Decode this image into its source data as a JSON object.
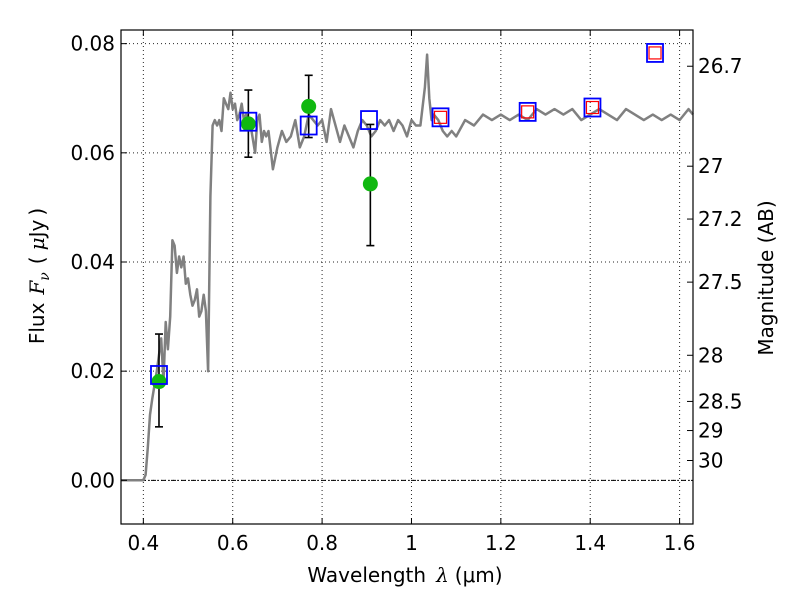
{
  "chart_data": {
    "type": "scatter",
    "title": "",
    "xlabel_text": "Wavelength",
    "xlabel_symbol": "λ",
    "xlabel_unit": "(μm)",
    "ylabel_text": "Flux",
    "ylabel_symbol": "F",
    "ylabel_subscript": "ν",
    "ylabel_unit_open": "(",
    "ylabel_unit_mu": "μ",
    "ylabel_unit_rest": "Jy",
    "ylabel_unit_close": ")",
    "y2label": "Magnitude (AB)",
    "xlim": [
      0.35,
      1.63
    ],
    "ylim": [
      -0.008,
      0.0825
    ],
    "grid": true,
    "xticks": [
      {
        "value": 0.4,
        "label": "0.4"
      },
      {
        "value": 0.6,
        "label": "0.6"
      },
      {
        "value": 0.8,
        "label": "0.8"
      },
      {
        "value": 1.0,
        "label": "1"
      },
      {
        "value": 1.2,
        "label": "1.2"
      },
      {
        "value": 1.4,
        "label": "1.4"
      },
      {
        "value": 1.6,
        "label": "1.6"
      }
    ],
    "yticks": [
      {
        "value": 0.0,
        "label": "0.00"
      },
      {
        "value": 0.02,
        "label": "0.02"
      },
      {
        "value": 0.04,
        "label": "0.04"
      },
      {
        "value": 0.06,
        "label": "0.06"
      },
      {
        "value": 0.08,
        "label": "0.08"
      }
    ],
    "y2ticks": [
      {
        "value": 26.7,
        "label": "26.7"
      },
      {
        "value": 27.0,
        "label": "27"
      },
      {
        "value": 27.2,
        "label": "27.2"
      },
      {
        "value": 27.5,
        "label": "27.5"
      },
      {
        "value": 28.0,
        "label": "28"
      },
      {
        "value": 28.5,
        "label": "28.5"
      },
      {
        "value": 29.0,
        "label": "29"
      },
      {
        "value": 30.0,
        "label": "30"
      }
    ],
    "model_spectrum": {
      "color": "#808080",
      "x": [
        0.35,
        0.4,
        0.405,
        0.41,
        0.415,
        0.42,
        0.43,
        0.44,
        0.445,
        0.45,
        0.455,
        0.46,
        0.465,
        0.47,
        0.475,
        0.48,
        0.485,
        0.49,
        0.495,
        0.5,
        0.505,
        0.51,
        0.515,
        0.52,
        0.525,
        0.53,
        0.535,
        0.54,
        0.545,
        0.55,
        0.555,
        0.56,
        0.565,
        0.57,
        0.575,
        0.58,
        0.585,
        0.59,
        0.595,
        0.6,
        0.605,
        0.61,
        0.615,
        0.62,
        0.625,
        0.63,
        0.64,
        0.65,
        0.655,
        0.66,
        0.665,
        0.67,
        0.675,
        0.68,
        0.69,
        0.7,
        0.71,
        0.72,
        0.73,
        0.74,
        0.75,
        0.76,
        0.77,
        0.78,
        0.79,
        0.8,
        0.81,
        0.82,
        0.83,
        0.84,
        0.85,
        0.86,
        0.87,
        0.88,
        0.89,
        0.9,
        0.91,
        0.92,
        0.93,
        0.94,
        0.95,
        0.96,
        0.97,
        0.98,
        0.99,
        1.0,
        1.01,
        1.02,
        1.03,
        1.035,
        1.04,
        1.045,
        1.05,
        1.06,
        1.07,
        1.08,
        1.09,
        1.1,
        1.12,
        1.14,
        1.16,
        1.18,
        1.2,
        1.22,
        1.24,
        1.26,
        1.28,
        1.3,
        1.32,
        1.34,
        1.36,
        1.38,
        1.4,
        1.42,
        1.44,
        1.46,
        1.48,
        1.5,
        1.52,
        1.54,
        1.56,
        1.58,
        1.6,
        1.62,
        1.63
      ],
      "y": [
        0.0,
        0.0,
        0.001,
        0.006,
        0.012,
        0.015,
        0.02,
        0.026,
        0.018,
        0.029,
        0.024,
        0.03,
        0.044,
        0.043,
        0.038,
        0.041,
        0.039,
        0.041,
        0.036,
        0.037,
        0.034,
        0.032,
        0.033,
        0.035,
        0.03,
        0.031,
        0.034,
        0.031,
        0.02,
        0.052,
        0.065,
        0.066,
        0.065,
        0.066,
        0.064,
        0.07,
        0.069,
        0.068,
        0.071,
        0.068,
        0.069,
        0.066,
        0.067,
        0.069,
        0.066,
        0.067,
        0.065,
        0.06,
        0.066,
        0.067,
        0.062,
        0.064,
        0.063,
        0.064,
        0.057,
        0.061,
        0.064,
        0.062,
        0.063,
        0.066,
        0.061,
        0.063,
        0.067,
        0.066,
        0.065,
        0.066,
        0.062,
        0.068,
        0.065,
        0.062,
        0.065,
        0.063,
        0.061,
        0.064,
        0.066,
        0.065,
        0.063,
        0.064,
        0.066,
        0.065,
        0.066,
        0.064,
        0.066,
        0.065,
        0.063,
        0.066,
        0.065,
        0.065,
        0.072,
        0.078,
        0.07,
        0.066,
        0.067,
        0.066,
        0.064,
        0.063,
        0.064,
        0.063,
        0.066,
        0.065,
        0.067,
        0.066,
        0.067,
        0.066,
        0.067,
        0.066,
        0.068,
        0.067,
        0.068,
        0.067,
        0.068,
        0.066,
        0.067,
        0.068,
        0.067,
        0.066,
        0.068,
        0.067,
        0.066,
        0.067,
        0.066,
        0.067,
        0.066,
        0.068,
        0.067
      ]
    },
    "model_bandpass_points": {
      "color": "#0000ff",
      "marker": "open-square",
      "points": [
        {
          "x": 0.435,
          "y": 0.0193
        },
        {
          "x": 0.635,
          "y": 0.0657
        },
        {
          "x": 0.77,
          "y": 0.065
        },
        {
          "x": 0.905,
          "y": 0.066
        },
        {
          "x": 1.065,
          "y": 0.0665
        },
        {
          "x": 1.26,
          "y": 0.0675
        },
        {
          "x": 1.405,
          "y": 0.0683
        },
        {
          "x": 1.545,
          "y": 0.0783
        }
      ]
    },
    "observed_points": {
      "color": "#10b810",
      "marker": "filled-circle",
      "points": [
        {
          "x": 0.435,
          "y": 0.0181,
          "yerr_low": 0.0098,
          "yerr_high": 0.0268
        },
        {
          "x": 0.635,
          "y": 0.0653,
          "yerr_low": 0.0592,
          "yerr_high": 0.0715
        },
        {
          "x": 0.77,
          "y": 0.0685,
          "yerr_low": 0.0628,
          "yerr_high": 0.0742
        },
        {
          "x": 0.908,
          "y": 0.0543,
          "yerr_low": 0.043,
          "yerr_high": 0.0652
        }
      ]
    },
    "upper_limit_points": {
      "color": "#ff0000",
      "marker": "open-square",
      "points": [
        {
          "x": 1.065,
          "y": 0.0665
        },
        {
          "x": 1.26,
          "y": 0.0675
        },
        {
          "x": 1.405,
          "y": 0.0683
        },
        {
          "x": 1.545,
          "y": 0.0783
        }
      ]
    },
    "errorbar_color": "#000000"
  }
}
